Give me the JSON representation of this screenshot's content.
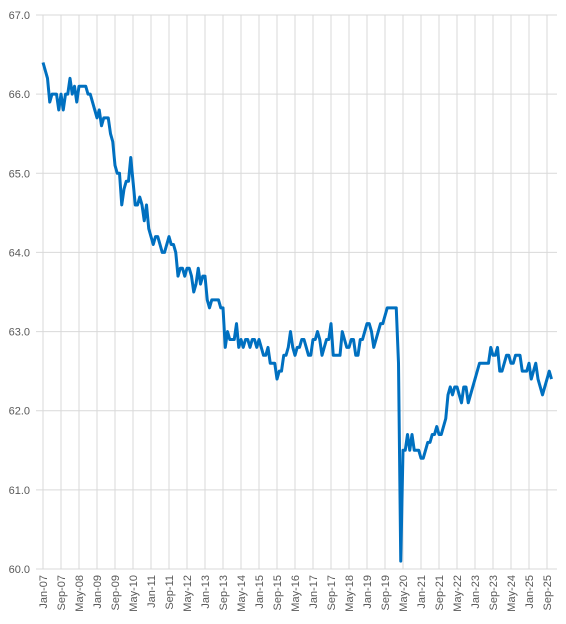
{
  "chart_data": {
    "type": "line",
    "categories": [
      "Jan-07",
      null,
      null,
      null,
      null,
      null,
      null,
      null,
      "Sep-07",
      null,
      null,
      null,
      null,
      null,
      null,
      null,
      "May-08",
      null,
      null,
      null,
      null,
      null,
      null,
      null,
      "Jan-09",
      null,
      null,
      null,
      null,
      null,
      null,
      null,
      "Sep-09",
      null,
      null,
      null,
      null,
      null,
      null,
      null,
      "May-10",
      null,
      null,
      null,
      null,
      null,
      null,
      null,
      "Jan-11",
      null,
      null,
      null,
      null,
      null,
      null,
      null,
      "Sep-11",
      null,
      null,
      null,
      null,
      null,
      null,
      null,
      "May-12",
      null,
      null,
      null,
      null,
      null,
      null,
      null,
      "Jan-13",
      null,
      null,
      null,
      null,
      null,
      null,
      null,
      "Sep-13",
      null,
      null,
      null,
      null,
      null,
      null,
      null,
      "May-14",
      null,
      null,
      null,
      null,
      null,
      null,
      null,
      "Jan-15",
      null,
      null,
      null,
      null,
      null,
      null,
      null,
      "Sep-15",
      null,
      null,
      null,
      null,
      null,
      null,
      null,
      "May-16",
      null,
      null,
      null,
      null,
      null,
      null,
      null,
      "Jan-17",
      null,
      null,
      null,
      null,
      null,
      null,
      null,
      "Sep-17",
      null,
      null,
      null,
      null,
      null,
      null,
      null,
      "May-18",
      null,
      null,
      null,
      null,
      null,
      null,
      null,
      "Jan-19",
      null,
      null,
      null,
      null,
      null,
      null,
      null,
      "Sep-19",
      null,
      null,
      null,
      null,
      null,
      null,
      null,
      "May-20",
      null,
      null,
      null,
      null,
      null,
      null,
      null,
      "Jan-21",
      null,
      null,
      null,
      null,
      null,
      null,
      null,
      "Sep-21",
      null,
      null,
      null,
      null,
      null,
      null,
      null,
      "May-22",
      null,
      null,
      null,
      null,
      null,
      null,
      null,
      "Jan-23",
      null,
      null,
      null,
      null,
      null,
      null,
      null,
      "Sep-23",
      null,
      null,
      null,
      null,
      null,
      null,
      null,
      "May-24",
      null,
      null,
      null,
      null,
      null,
      null,
      null,
      "Jan-25",
      null,
      null,
      null,
      null,
      null,
      null,
      null,
      "Sep-25",
      null,
      null
    ],
    "series": [
      {
        "color": "#0070c0",
        "values": [
          66.4,
          66.3,
          66.2,
          65.9,
          66.0,
          66.0,
          66.0,
          65.8,
          66.0,
          65.8,
          66.0,
          66.0,
          66.2,
          66.0,
          66.1,
          65.9,
          66.1,
          66.1,
          66.1,
          66.1,
          66.0,
          66.0,
          65.9,
          65.8,
          65.7,
          65.8,
          65.6,
          65.7,
          65.7,
          65.7,
          65.5,
          65.4,
          65.1,
          65.0,
          65.0,
          64.6,
          64.8,
          64.9,
          64.9,
          65.2,
          64.9,
          64.6,
          64.6,
          64.7,
          64.6,
          64.4,
          64.6,
          64.3,
          64.2,
          64.1,
          64.2,
          64.2,
          64.1,
          64.0,
          64.0,
          64.1,
          64.2,
          64.1,
          64.1,
          64.0,
          63.7,
          63.8,
          63.8,
          63.7,
          63.8,
          63.8,
          63.7,
          63.5,
          63.6,
          63.8,
          63.6,
          63.7,
          63.7,
          63.4,
          63.3,
          63.4,
          63.4,
          63.4,
          63.4,
          63.3,
          63.3,
          62.8,
          63.0,
          62.9,
          62.9,
          62.9,
          63.1,
          62.8,
          62.9,
          62.8,
          62.9,
          62.9,
          62.8,
          62.9,
          62.9,
          62.8,
          62.9,
          62.8,
          62.7,
          62.7,
          62.8,
          62.6,
          62.6,
          62.6,
          62.4,
          62.5,
          62.5,
          62.7,
          62.7,
          62.8,
          63.0,
          62.8,
          62.7,
          62.8,
          62.8,
          62.9,
          62.9,
          62.8,
          62.7,
          62.7,
          62.9,
          62.9,
          63.0,
          62.9,
          62.7,
          62.8,
          62.9,
          62.9,
          63.1,
          62.7,
          62.7,
          62.7,
          62.7,
          63.0,
          62.9,
          62.8,
          62.8,
          62.9,
          62.9,
          62.7,
          62.7,
          62.9,
          62.9,
          63.0,
          63.1,
          63.1,
          63.0,
          62.8,
          62.9,
          63.0,
          63.1,
          63.1,
          63.2,
          63.3,
          63.3,
          63.3,
          63.3,
          63.3,
          62.6,
          60.1,
          61.5,
          61.5,
          61.7,
          61.5,
          61.7,
          61.5,
          61.5,
          61.5,
          61.4,
          61.4,
          61.5,
          61.6,
          61.6,
          61.7,
          61.7,
          61.8,
          61.7,
          61.7,
          61.8,
          61.9,
          62.2,
          62.3,
          62.2,
          62.3,
          62.3,
          62.2,
          62.1,
          62.3,
          62.3,
          62.1,
          62.2,
          62.3,
          62.4,
          62.5,
          62.6,
          62.6,
          62.6,
          62.6,
          62.6,
          62.8,
          62.7,
          62.7,
          62.8,
          62.5,
          62.5,
          62.6,
          62.7,
          62.7,
          62.6,
          62.6,
          62.7,
          62.7,
          62.7,
          62.5,
          62.5,
          62.5,
          62.6,
          62.4,
          62.5,
          62.6,
          62.4,
          62.3,
          62.2,
          62.3,
          62.4,
          62.5,
          62.4
        ]
      }
    ],
    "ylim": [
      60,
      67
    ],
    "yticks": [
      {
        "value": 60,
        "label": "60.0"
      },
      {
        "value": 61,
        "label": "61.0"
      },
      {
        "value": 62,
        "label": "62.0"
      },
      {
        "value": 63,
        "label": "63.0"
      },
      {
        "value": 64,
        "label": "64.0"
      },
      {
        "value": 65,
        "label": "65.0"
      },
      {
        "value": 66,
        "label": "66.0"
      },
      {
        "value": 67,
        "label": "67.0"
      }
    ],
    "grid": true
  }
}
